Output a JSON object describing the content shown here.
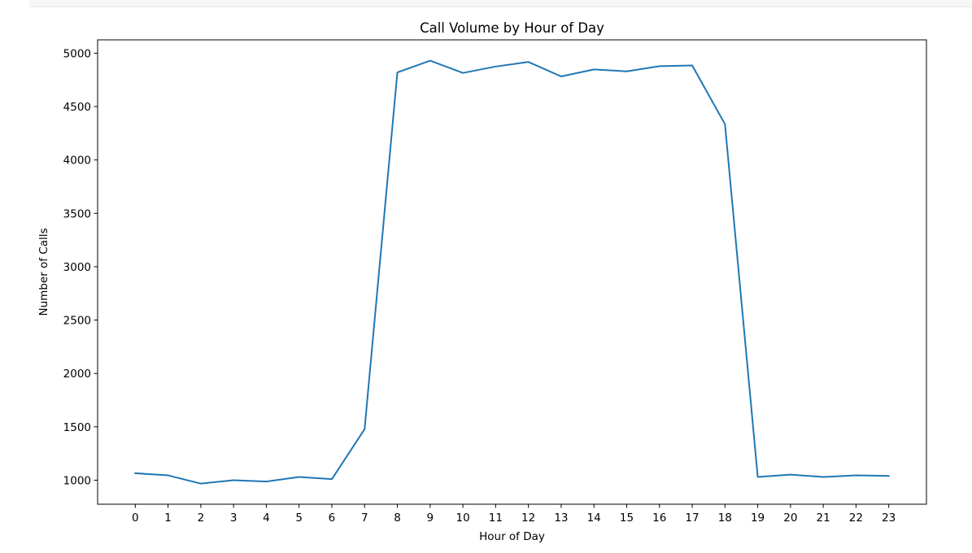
{
  "chart_data": {
    "type": "line",
    "title": "Call Volume by Hour of Day",
    "xlabel": "Hour of Day",
    "ylabel": "Number of Calls",
    "categories": [
      "0",
      "1",
      "2",
      "3",
      "4",
      "5",
      "6",
      "7",
      "8",
      "9",
      "10",
      "11",
      "12",
      "13",
      "14",
      "15",
      "16",
      "17",
      "18",
      "19",
      "20",
      "21",
      "22",
      "23"
    ],
    "x": [
      0,
      1,
      2,
      3,
      4,
      5,
      6,
      7,
      8,
      9,
      10,
      11,
      12,
      13,
      14,
      15,
      16,
      17,
      18,
      19,
      20,
      21,
      22,
      23
    ],
    "y_ticks": [
      1000,
      1500,
      2000,
      2500,
      3000,
      3500,
      4000,
      4500,
      5000
    ],
    "y_tick_labels": [
      "1000",
      "1500",
      "2000",
      "2500",
      "3000",
      "3500",
      "4000",
      "4500",
      "5000"
    ],
    "series": [
      {
        "values": [
          1065,
          1045,
          968,
          1000,
          987,
          1030,
          1010,
          1478,
          4820,
          4930,
          4815,
          4875,
          4918,
          4782,
          4848,
          4830,
          4878,
          4885,
          4335,
          1030,
          1052,
          1030,
          1045,
          1040
        ],
        "color": "#1f77b4"
      }
    ],
    "xlim": [
      -1.15,
      24.15
    ],
    "ylim": [
      775,
      5125
    ],
    "grid": false,
    "legend": false
  }
}
